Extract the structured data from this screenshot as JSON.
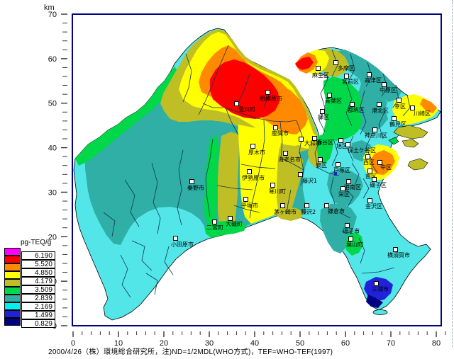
{
  "axes": {
    "unit": "km",
    "x_tick_labels": [
      "0",
      "10",
      "20",
      "30",
      "40",
      "50",
      "60",
      "70",
      "80"
    ],
    "y_tick_labels": [
      "70",
      "60",
      "50",
      "40",
      "30",
      "20",
      "10",
      "0"
    ]
  },
  "legend": {
    "title": "pg-TEQ/g",
    "values": [
      "6.190",
      "5.520",
      "4.850",
      "4.179",
      "3.509",
      "2.839",
      "2.169",
      "1.499",
      "0.829"
    ],
    "colors": [
      "#FF00FF",
      "#FF0000",
      "#FF8A00",
      "#FFFF00",
      "#BFBF25",
      "#00D84A",
      "#2FAFA5",
      "#00EFEF",
      "#2121DC",
      "#000082"
    ]
  },
  "caption": "2000/4/26（株）環境総合研究所，注)ND=1/2MDL(WHO方式)，TEF=WHO-TEF(1997)",
  "map": {
    "colors": {
      "cyan": "#52E6E8",
      "teal": "#2FAFA5",
      "green": "#00D84A",
      "olive": "#BFBF25",
      "yellow": "#FFFF00",
      "orange": "#FF8A00",
      "red": "#FF0000",
      "blue": "#2121DC",
      "navy": "#000082",
      "frame": "#000080",
      "border_line": "#16324f"
    },
    "points": [
      {
        "label": "相模原市",
        "marker": [
          374,
          127
        ],
        "text": [
          366,
          136
        ]
      },
      {
        "label": "愛川町",
        "marker": [
          330,
          143
        ],
        "text": [
          336,
          151
        ]
      },
      {
        "label": "座間市",
        "marker": [
          385,
          177
        ],
        "text": [
          383,
          185
        ]
      },
      {
        "label": "大和市",
        "marker": [
          421,
          193
        ],
        "text": [
          429,
          199
        ]
      },
      {
        "label": "厚木市",
        "marker": [
          353,
          203
        ],
        "text": [
          350,
          212
        ]
      },
      {
        "label": "海老名市",
        "marker": [
          399,
          213
        ],
        "text": [
          392,
          222
        ]
      },
      {
        "label": "伊勢原市",
        "marker": [
          348,
          239
        ],
        "text": [
          341,
          248
        ]
      },
      {
        "label": "秦野市",
        "marker": [
          267,
          253
        ],
        "text": [
          264,
          262
        ]
      },
      {
        "label": "寒川町",
        "marker": [
          381,
          258
        ],
        "text": [
          379,
          267
        ]
      },
      {
        "label": "平塚市",
        "marker": [
          343,
          278
        ],
        "text": [
          340,
          287
        ]
      },
      {
        "label": "茅ヶ崎市",
        "marker": [
          395,
          287
        ],
        "text": [
          386,
          296
        ]
      },
      {
        "label": "藤沢1",
        "marker": [
          420,
          243
        ],
        "text": [
          426,
          252
        ]
      },
      {
        "label": "藤沢2",
        "marker": [
          429,
          287
        ],
        "text": [
          424,
          296
        ]
      },
      {
        "label": "大磯町",
        "marker": [
          321,
          305
        ],
        "text": [
          318,
          313
        ]
      },
      {
        "label": "二宮町",
        "marker": [
          299,
          310
        ],
        "text": [
          291,
          318
        ]
      },
      {
        "label": "小田原市",
        "marker": [
          244,
          333
        ],
        "text": [
          241,
          342
        ]
      },
      {
        "label": "鎌倉市",
        "marker": [
          457,
          287
        ],
        "text": [
          462,
          295
        ]
      },
      {
        "label": "逗子市",
        "marker": [
          486,
          315
        ],
        "text": [
          483,
          323
        ]
      },
      {
        "label": "葉山町",
        "marker": [
          491,
          334
        ],
        "text": [
          488,
          342
        ]
      },
      {
        "label": "横須賀市",
        "marker": [
          554,
          349
        ],
        "text": [
          546,
          357
        ]
      },
      {
        "label": "三浦市",
        "marker": [
          527,
          397
        ],
        "text": [
          524,
          405
        ]
      },
      {
        "label": "多摩区",
        "marker": [
          470,
          85
        ],
        "text": [
          476,
          93
        ]
      },
      {
        "label": "麻生区",
        "marker": [
          445,
          93
        ],
        "text": [
          440,
          103
        ]
      },
      {
        "label": "宮前区",
        "marker": [
          485,
          104
        ],
        "text": [
          482,
          112
        ]
      },
      {
        "label": "高津区",
        "marker": [
          517,
          102
        ],
        "text": [
          514,
          110
        ]
      },
      {
        "label": "中原区",
        "marker": [
          538,
          116
        ],
        "text": [
          535,
          124
        ]
      },
      {
        "label": "幸区",
        "marker": [
          559,
          138
        ],
        "text": [
          556,
          147
        ]
      },
      {
        "label": "川崎区",
        "marker": [
          578,
          149
        ],
        "text": [
          583,
          157
        ]
      },
      {
        "label": "青葉区",
        "marker": [
          461,
          131
        ],
        "text": [
          458,
          139
        ]
      },
      {
        "label": "緑区",
        "marker": [
          451,
          154
        ],
        "text": [
          448,
          162
        ]
      },
      {
        "label": "都筑区",
        "marker": [
          493,
          144
        ],
        "text": [
          490,
          152
        ]
      },
      {
        "label": "港北区",
        "marker": [
          531,
          144
        ],
        "text": [
          524,
          153
        ]
      },
      {
        "label": "鶴見区",
        "marker": [
          552,
          164
        ],
        "text": [
          549,
          172
        ]
      },
      {
        "label": "神奈川区",
        "marker": [
          525,
          180
        ],
        "text": [
          514,
          188
        ]
      },
      {
        "label": "瀬谷区",
        "marker": [
          440,
          192
        ],
        "text": [
          446,
          198
        ]
      },
      {
        "label": "旭区",
        "marker": [
          477,
          195
        ],
        "text": [
          474,
          203
        ]
      },
      {
        "label": "保土ケ谷区",
        "marker": [
          487,
          201
        ],
        "text": [
          490,
          209
        ]
      },
      {
        "label": "西区",
        "marker": [
          515,
          218
        ],
        "text": [
          512,
          226
        ]
      },
      {
        "label": "中区",
        "marker": [
          532,
          226
        ],
        "text": [
          536,
          233
        ]
      },
      {
        "label": "南区",
        "marker": [
          518,
          238
        ],
        "text": [
          515,
          246
        ]
      },
      {
        "label": "泉区",
        "marker": [
          448,
          222
        ],
        "text": [
          445,
          230
        ]
      },
      {
        "label": "戸塚区",
        "marker": [
          473,
          229
        ],
        "text": [
          470,
          237
        ]
      },
      {
        "label": "港南区",
        "marker": [
          488,
          253
        ],
        "text": [
          485,
          261
        ]
      },
      {
        "label": "磯子区",
        "marker": [
          524,
          250
        ],
        "text": [
          521,
          258
        ]
      },
      {
        "label": "栄区",
        "marker": [
          480,
          263
        ],
        "text": [
          477,
          271
        ]
      },
      {
        "label": "金沢区",
        "marker": [
          518,
          280
        ],
        "text": [
          515,
          288
        ]
      }
    ]
  }
}
